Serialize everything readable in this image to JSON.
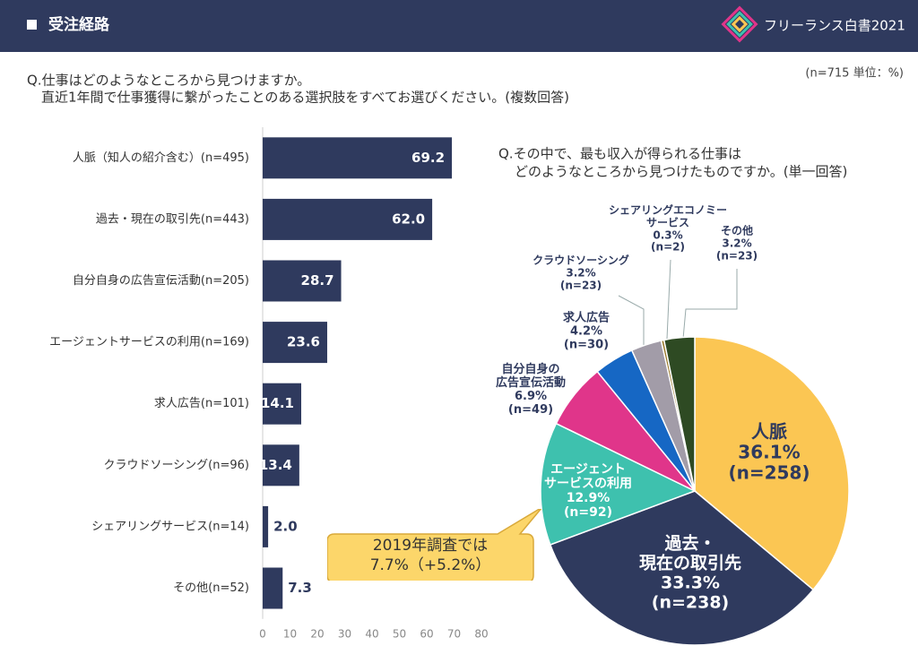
{
  "header": {
    "title": "受注経路",
    "brand": "フリーランス白書2021"
  },
  "note": "(n=715 単位：%)",
  "question": [
    "Q.仕事はどのようなところから見つけますか。",
    "直近1年間で仕事獲得に繋がったことのある選択肢をすべてお選びください。(複数回答)"
  ],
  "chart_data": [
    {
      "type": "hbar",
      "categories": [
        "人脈（知人の紹介含む）(n=495)",
        "過去・現在の取引先(n=443)",
        "自分自身の広告宣伝活動(n=205)",
        "エージェントサービスの利用(n=169)",
        "求人広告(n=101)",
        "クラウドソーシング(n=96)",
        "シェアリングサービス(n=14)",
        "その他(n=52)"
      ],
      "values": [
        69.2,
        62.0,
        28.7,
        23.6,
        14.1,
        13.4,
        2.0,
        7.3
      ],
      "value_labels": [
        "69.2",
        "62.0",
        "28.7",
        "23.6",
        "14.1",
        "13.4",
        "2.0",
        "7.3"
      ],
      "color": "#2f3a5e",
      "xlim": [
        0,
        80
      ],
      "xticks": [
        0,
        10,
        20,
        30,
        40,
        50,
        60,
        70,
        80
      ]
    },
    {
      "type": "pie",
      "title": [
        "Q.その中で、最も収入が得られる仕事は",
        "どのようなところから見つけたものですか。(単一回答)"
      ],
      "categories": [
        "人脈",
        "過去・\n現在の取引先",
        "エージェント\nサービスの利用",
        "自分自身の\n広告宣伝活動",
        "求人広告",
        "クラウドソーシング",
        "シェアリングエコノミー\nサービス",
        "その他"
      ],
      "values": [
        36.1,
        33.3,
        12.9,
        6.9,
        4.2,
        3.2,
        0.3,
        3.2
      ],
      "value_labels": [
        "36.1%",
        "33.3%",
        "12.9%",
        "6.9%",
        "4.2%",
        "3.2%",
        "0.3%",
        "3.2%"
      ],
      "n_labels": [
        "(n=258)",
        "(n=238)",
        "(n=92)",
        "(n=49)",
        "(n=30)",
        "(n=23)",
        "(n=2)",
        "(n=23)"
      ],
      "colors": [
        "#fbc653",
        "#2f3a5e",
        "#3ec1ae",
        "#e0358a",
        "#1667c4",
        "#a29ca8",
        "#9a7a2c",
        "#2e4a23"
      ],
      "annotation": "2019年調査では\n7.7%（+5.2%）"
    }
  ]
}
